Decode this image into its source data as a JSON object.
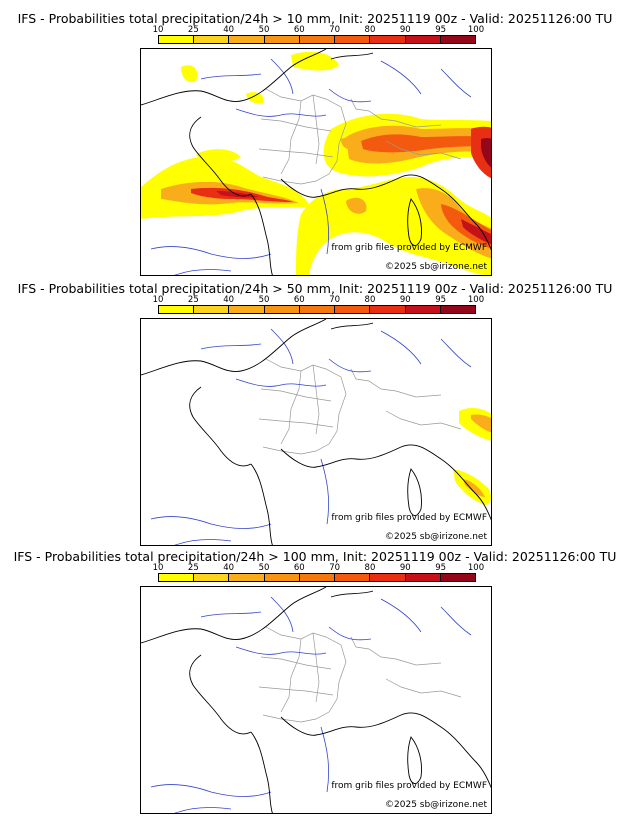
{
  "colorbar": {
    "ticks": [
      "10",
      "25",
      "40",
      "50",
      "60",
      "70",
      "80",
      "90",
      "95",
      "100"
    ],
    "colors": [
      "#ffff00",
      "#fcd41e",
      "#f9ad1a",
      "#f79414",
      "#f4770f",
      "#f35a10",
      "#e82f14",
      "#c4111a",
      "#94061a"
    ]
  },
  "panels": [
    {
      "title": "IFS - Probabilities total precipitation/24h > 10 mm, Init: 20251119 00z - Valid: 20251126:00 TU",
      "credit_source": "from grib files provided by ECMWF",
      "credit_copyright": "©2025 sb@irizone.net"
    },
    {
      "title": "IFS - Probabilities total precipitation/24h > 50 mm, Init: 20251119 00z - Valid: 20251126:00 TU",
      "credit_source": "from grib files provided by ECMWF",
      "credit_copyright": "©2025 sb@irizone.net"
    },
    {
      "title": "IFS - Probabilities total precipitation/24h > 100 mm, Init: 20251119 00z - Valid: 20251126:00 TU",
      "credit_source": "from grib files provided by ECMWF",
      "credit_copyright": "©2025 sb@irizone.net"
    }
  ]
}
